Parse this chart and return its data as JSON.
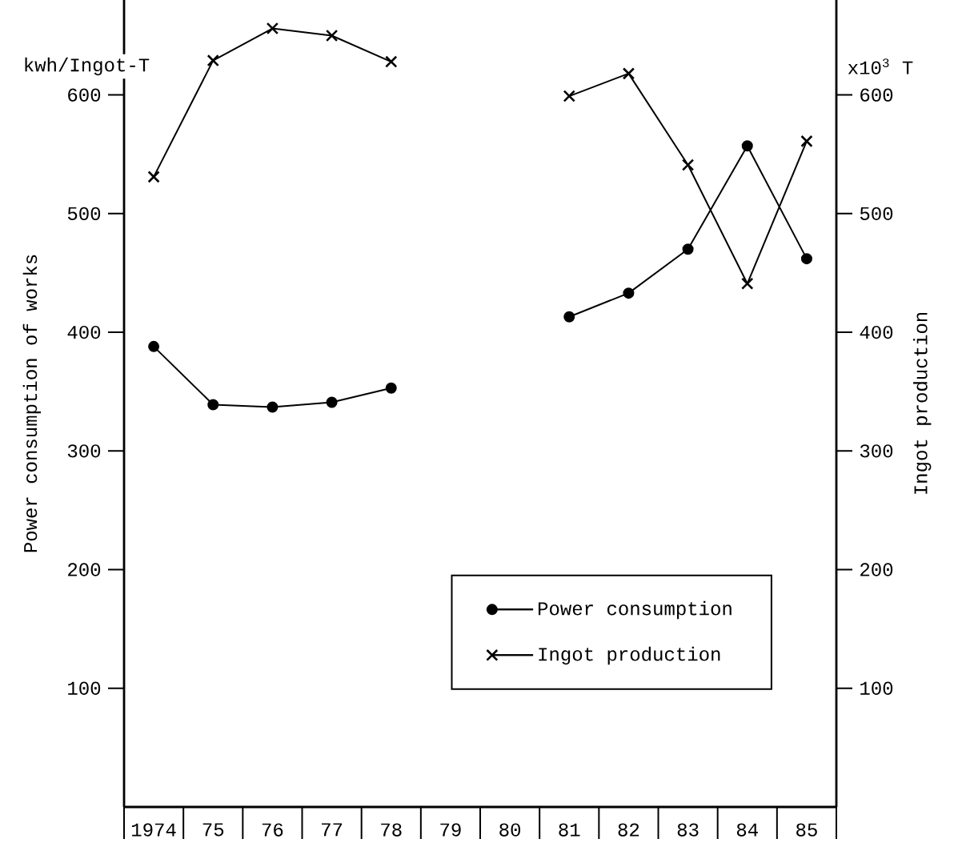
{
  "chart_data": {
    "type": "line",
    "ylabel": "Power consumption of works",
    "y2label": "Ingot production",
    "annotations": [
      "kwh/Ingot-T",
      "x10$^{3}$ T"
    ],
    "categories": [
      "1974",
      "75",
      "76",
      "77",
      "78",
      "79",
      "80",
      "81",
      "82",
      "83",
      "84",
      "85"
    ],
    "ylim": [
      0,
      680
    ],
    "yticks": [
      100,
      200,
      300,
      400,
      500,
      600
    ],
    "y2lim": [
      0,
      680
    ],
    "y2ticks": [
      100,
      200,
      300,
      400,
      500,
      600
    ],
    "legend": "bottom right",
    "series": [
      {
        "name": "Power consumption",
        "color": "#000000",
        "marker": "circle",
        "values": [
          388,
          339,
          337,
          341,
          353,
          null,
          null,
          413,
          433,
          470,
          557,
          462
        ]
      },
      {
        "name": "Ingot production",
        "color": "#000000",
        "marker": "cross",
        "axis": "y2",
        "values": [
          531,
          629,
          656,
          650,
          628,
          null,
          null,
          599,
          618,
          541,
          441,
          561
        ]
      }
    ]
  }
}
